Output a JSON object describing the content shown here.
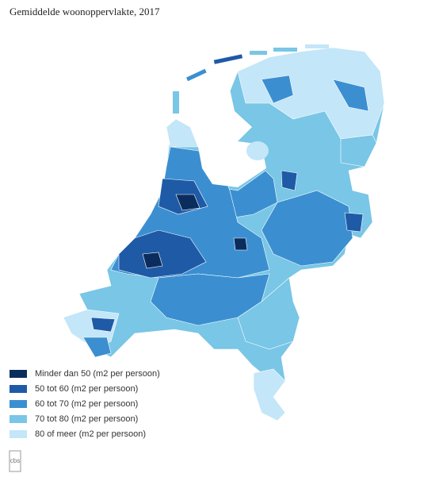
{
  "title": "Gemiddelde woonoppervlakte, 2017",
  "legend": [
    {
      "label": "Minder dan 50 (m2 per persoon)",
      "color": "#0b2d5e"
    },
    {
      "label": "50 tot 60 (m2 per persoon)",
      "color": "#1f5aa6"
    },
    {
      "label": "60 tot 70 (m2 per persoon)",
      "color": "#3b8fd1"
    },
    {
      "label": "70 tot 80 (m2 per persoon)",
      "color": "#79c6e6"
    },
    {
      "label": "80 of meer (m2 per persoon)",
      "color": "#c3e6f8"
    }
  ],
  "logo": "cbs"
}
